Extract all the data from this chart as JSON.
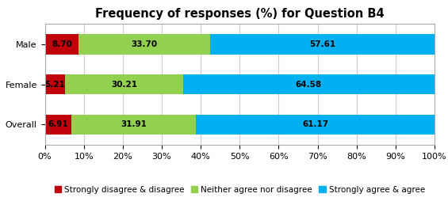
{
  "title": "Frequency of responses (%) for Question B4",
  "categories": [
    "Male",
    "Female",
    "Overall"
  ],
  "categories_display": [
    "Male",
    "Female",
    "Overall"
  ],
  "series": [
    {
      "label": "Strongly disagree & disagree",
      "values_ordered": [
        8.7,
        5.21,
        6.91
      ],
      "color": "#C0000A"
    },
    {
      "label": "Neither agree nor disagree",
      "values_ordered": [
        33.7,
        30.21,
        31.91
      ],
      "color": "#92D050"
    },
    {
      "label": "Strongly agree & agree",
      "values_ordered": [
        57.61,
        64.58,
        61.17
      ],
      "color": "#00B0F0"
    }
  ],
  "xlim": [
    0,
    100
  ],
  "xticks": [
    0,
    10,
    20,
    30,
    40,
    50,
    60,
    70,
    80,
    90,
    100
  ],
  "xtick_labels": [
    "0%",
    "10%",
    "20%",
    "30%",
    "40%",
    "50%",
    "60%",
    "70%",
    "80%",
    "90%",
    "100%"
  ],
  "bar_height": 0.5,
  "background_color": "#FFFFFF",
  "grid_color": "#CCCCCC",
  "title_fontsize": 10.5,
  "label_fontsize": 7.5,
  "tick_fontsize": 8,
  "legend_fontsize": 7.5
}
